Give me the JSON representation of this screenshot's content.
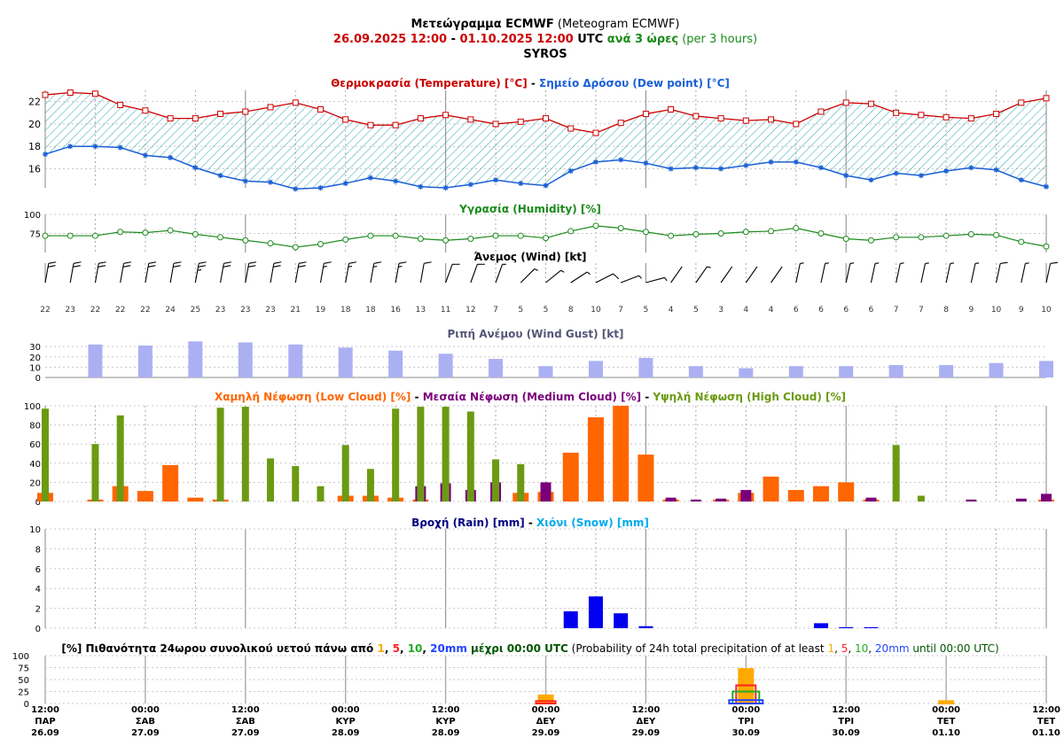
{
  "header": {
    "line1_bold": "Μετεώγραμμα ECMWF",
    "line1_normal": " (Meteogram ECMWF)",
    "line2_from": "26.09.2025 12:00",
    "line2_dash": " - ",
    "line2_to": "01.10.2025 12:00",
    "line2_utc": " UTC ",
    "line2_step_bold": "ανά 3 ώρες",
    "line2_step_normal": " (per 3 hours)",
    "location": "SYROS"
  },
  "colors": {
    "temperature": "#cc0000",
    "dewpoint": "#1a5fd6",
    "fill_hatch": "#2ba6b0",
    "humidity": "#1a8a1a",
    "wind": "#000000",
    "gust": "#aab0f2",
    "gust_title": "#555577",
    "low_cloud": "#ff6600",
    "medium_cloud": "#7a007a",
    "high_cloud": "#6b9a12",
    "rain": "#0000ee",
    "rain_title": "#000080",
    "snow": "#00aaee",
    "p1": "#ffaa00",
    "p5": "#ff2222",
    "p10": "#22aa22",
    "p20": "#2244ff",
    "prob_title_dark": "#000000",
    "prob_title_green": "#005500"
  },
  "titles": {
    "temp_a": "Θερμοκρασία (Temperature) [°C]",
    "temp_sep": " - ",
    "temp_b": "Σημείο Δρόσου (Dew point) [°C]",
    "humidity": "Υγρασία (Humidity) [%]",
    "wind": "Άνεμος (Wind) [kt]",
    "gust": "Ριπή Ανέμου (Wind Gust) [kt]",
    "cloud_low": "Χαμηλή Νέφωση (Low Cloud) [%]",
    "cloud_sep": " - ",
    "cloud_med": "Μεσαία Νέφωση (Medium Cloud) [%]",
    "cloud_high": "Υψηλή Νέφωση (High Cloud) [%]",
    "rain": "Βροχή (Rain) [mm]",
    "rain_sep": " - ",
    "snow": "Χιόνι (Snow) [mm]",
    "prob_gr_a": "[%] Πιθανότητα 24ωρου συνολικού υετού πάνω από ",
    "prob_gr_b": " μέχρι 00:00 UTC",
    "prob_en_a": " (Probability of 24h total precipitation of at least ",
    "prob_en_b": " until 00:00 UTC)",
    "prob_thresholds": [
      "1",
      "5",
      "10",
      "20mm"
    ],
    "comma": ", "
  },
  "chart_data": [
    {
      "type": "line",
      "panel": "temperature",
      "y_ticks": [
        16,
        18,
        20,
        22
      ],
      "ylim": [
        14.3,
        23
      ],
      "series": [
        {
          "name": "Θερμοκρασία (Temperature)",
          "values": [
            22.6,
            22.8,
            22.7,
            21.7,
            21.2,
            20.5,
            20.5,
            20.9,
            21.1,
            21.5,
            21.9,
            21.3,
            20.4,
            19.9,
            19.9,
            20.5,
            20.8,
            20.4,
            20.0,
            20.2,
            20.5,
            19.6,
            19.2,
            20.1,
            20.9,
            21.3,
            20.7,
            20.5,
            20.3,
            20.4,
            20.0,
            21.1,
            21.9,
            21.8,
            21.0,
            20.8,
            20.6,
            20.5,
            20.9,
            21.9,
            22.3
          ]
        },
        {
          "name": "Σημείο Δρόσου (Dew point)",
          "values": [
            17.3,
            18.0,
            18.0,
            17.9,
            17.2,
            17.0,
            16.1,
            15.4,
            14.9,
            14.8,
            14.2,
            14.3,
            14.7,
            15.2,
            14.9,
            14.4,
            14.3,
            14.6,
            15.0,
            14.7,
            14.5,
            15.8,
            16.6,
            16.8,
            16.5,
            16.0,
            16.1,
            16.0,
            16.3,
            16.6,
            16.6,
            16.1,
            15.4,
            15.0,
            15.6,
            15.4,
            15.8,
            16.1,
            15.9,
            15.0,
            14.4
          ]
        }
      ]
    },
    {
      "type": "line",
      "panel": "humidity",
      "y_ticks": [
        75,
        100
      ],
      "ylim": [
        50,
        100
      ],
      "series": [
        {
          "name": "Υγρασία (Humidity)",
          "values": [
            72,
            72,
            72,
            77,
            76,
            79,
            74,
            70,
            66,
            62,
            57,
            61,
            67,
            72,
            72,
            68,
            66,
            68,
            72,
            72,
            69,
            78,
            85,
            82,
            77,
            72,
            74,
            75,
            77,
            78,
            82,
            75,
            68,
            66,
            70,
            70,
            72,
            74,
            73,
            64,
            58
          ]
        }
      ]
    },
    {
      "type": "table",
      "panel": "wind",
      "values": [
        22,
        23,
        22,
        22,
        22,
        24,
        25,
        23,
        23,
        23,
        21,
        19,
        18,
        18,
        16,
        13,
        11,
        12,
        7,
        5,
        5,
        8,
        10,
        7,
        5,
        4,
        5,
        3,
        4,
        4,
        6,
        6,
        6,
        6,
        7,
        7,
        8,
        9,
        10,
        9,
        10
      ]
    },
    {
      "type": "bar",
      "panel": "wind_gust",
      "y_ticks": [
        0,
        10,
        20,
        30
      ],
      "ylim": [
        0,
        37
      ],
      "values": [
        32,
        31,
        35,
        34,
        32,
        29,
        26,
        23,
        18,
        11,
        16,
        19,
        11,
        9,
        11,
        11,
        12,
        12,
        14,
        16
      ]
    },
    {
      "type": "bar",
      "panel": "clouds",
      "y_ticks": [
        0,
        20,
        40,
        60,
        80,
        100
      ],
      "ylim": [
        0,
        100
      ],
      "series": [
        {
          "name": "Χαμηλή Νέφωση (Low Cloud)",
          "values": [
            9,
            0,
            2,
            16,
            11,
            38,
            4,
            2,
            0,
            0,
            0,
            0,
            6,
            6,
            4,
            2,
            0,
            0,
            0,
            9,
            10,
            51,
            88,
            100,
            49,
            2,
            0,
            2,
            9,
            26,
            12,
            16,
            20,
            2,
            0,
            0,
            0,
            0,
            0,
            0,
            2
          ]
        },
        {
          "name": "Μεσαία Νέφωση (Medium Cloud)",
          "values": [
            0,
            0,
            0,
            0,
            0,
            0,
            0,
            0,
            0,
            0,
            0,
            0,
            0,
            0,
            0,
            16,
            19,
            12,
            20,
            0,
            20,
            0,
            0,
            0,
            0,
            4,
            2,
            3,
            12,
            0,
            0,
            0,
            0,
            4,
            0,
            0,
            0,
            2,
            0,
            3,
            8
          ]
        },
        {
          "name": "Υψηλή Νέφωση (High Cloud)",
          "values": [
            97,
            0,
            60,
            90,
            0,
            0,
            0,
            98,
            99,
            45,
            37,
            16,
            59,
            34,
            97,
            99,
            99,
            94,
            44,
            39,
            0,
            0,
            0,
            0,
            0,
            0,
            0,
            0,
            0,
            0,
            0,
            0,
            0,
            0,
            59,
            6,
            0,
            0,
            0,
            0,
            0
          ]
        }
      ]
    },
    {
      "type": "bar",
      "panel": "rain",
      "y_ticks": [
        0,
        2,
        4,
        6,
        8,
        10
      ],
      "ylim": [
        0,
        10
      ],
      "series": [
        {
          "name": "Βροχή (Rain)",
          "values": [
            0,
            0,
            0,
            0,
            0,
            0,
            0,
            0,
            0,
            0,
            0,
            0,
            0,
            0,
            0,
            0,
            0,
            0,
            0,
            0,
            0,
            1.7,
            3.2,
            1.5,
            0.2,
            0,
            0,
            0,
            0,
            0,
            0,
            0.5,
            0.1,
            0.1,
            0,
            0,
            0,
            0,
            0,
            0,
            0
          ]
        },
        {
          "name": "Χιόνι (Snow)",
          "values": [
            0,
            0,
            0,
            0,
            0,
            0,
            0,
            0,
            0,
            0,
            0,
            0,
            0,
            0,
            0,
            0,
            0,
            0,
            0,
            0,
            0,
            0,
            0,
            0,
            0,
            0,
            0,
            0,
            0,
            0,
            0,
            0,
            0,
            0,
            0,
            0,
            0,
            0,
            0,
            0,
            0
          ]
        }
      ]
    },
    {
      "type": "bar",
      "panel": "precip_probability",
      "y_ticks": [
        0,
        25,
        50,
        75,
        100
      ],
      "ylim": [
        0,
        100
      ],
      "days": [
        "29.09",
        "30.09",
        "01.10"
      ],
      "series": [
        {
          "name": "1",
          "values": [
            17,
            72,
            5
          ]
        },
        {
          "name": "5",
          "values": [
            5,
            38,
            0
          ]
        },
        {
          "name": "10",
          "values": [
            0,
            25,
            0
          ]
        },
        {
          "name": "20mm",
          "values": [
            0,
            7,
            0
          ]
        }
      ]
    }
  ],
  "x_axis": {
    "labels": [
      {
        "time": "12:00",
        "day": "ΠΑΡ",
        "date": "26.09"
      },
      {
        "time": "00:00",
        "day": "ΣΑΒ",
        "date": "27.09"
      },
      {
        "time": "12:00",
        "day": "ΣΑΒ",
        "date": "27.09"
      },
      {
        "time": "00:00",
        "day": "ΚΥΡ",
        "date": "28.09"
      },
      {
        "time": "12:00",
        "day": "ΚΥΡ",
        "date": "28.09"
      },
      {
        "time": "00:00",
        "day": "ΔΕΥ",
        "date": "29.09"
      },
      {
        "time": "12:00",
        "day": "ΔΕΥ",
        "date": "29.09"
      },
      {
        "time": "00:00",
        "day": "ΤΡΙ",
        "date": "30.09"
      },
      {
        "time": "12:00",
        "day": "ΤΡΙ",
        "date": "30.09"
      },
      {
        "time": "00:00",
        "day": "ΤΕΤ",
        "date": "01.10"
      },
      {
        "time": "12:00",
        "day": "ΤΕΤ",
        "date": "01.10"
      }
    ]
  }
}
